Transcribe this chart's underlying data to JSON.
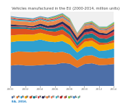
{
  "title": "Vehicles manufactured in the EU (2000-2014, million units)",
  "years": [
    2000,
    2001,
    2002,
    2003,
    2004,
    2005,
    2006,
    2007,
    2008,
    2009,
    2010,
    2011,
    2012,
    2013,
    2014
  ],
  "series": [
    {
      "label": "DE",
      "color": "#4d6fa8",
      "values": [
        5.5,
        5.7,
        5.5,
        5.5,
        5.6,
        5.8,
        5.8,
        6.2,
        6.0,
        4.9,
        5.9,
        6.1,
        5.6,
        5.7,
        5.9
      ]
    },
    {
      "label": "FR",
      "color": "#e87722",
      "values": [
        3.3,
        3.6,
        3.7,
        3.6,
        3.7,
        3.5,
        3.2,
        3.0,
        2.6,
        2.0,
        2.2,
        2.2,
        1.9,
        1.7,
        1.8
      ]
    },
    {
      "label": "ES",
      "color": "#2fa0d0",
      "values": [
        3.0,
        2.8,
        2.9,
        3.0,
        3.2,
        2.7,
        2.8,
        2.9,
        2.5,
        2.1,
        2.4,
        2.4,
        1.9,
        2.2,
        2.4
      ]
    },
    {
      "label": "GB",
      "color": "#f5a800",
      "values": [
        1.8,
        1.7,
        1.8,
        1.7,
        1.8,
        1.8,
        1.6,
        1.8,
        1.6,
        1.0,
        1.4,
        1.5,
        1.6,
        1.6,
        1.6
      ]
    },
    {
      "label": "IT",
      "color": "#e05020",
      "values": [
        1.8,
        1.6,
        1.5,
        1.3,
        1.1,
        1.0,
        1.2,
        1.3,
        1.0,
        0.8,
        0.8,
        0.8,
        0.7,
        0.4,
        0.7
      ]
    },
    {
      "label": "CZ",
      "color": "#1a7a8a",
      "values": [
        0.5,
        0.5,
        0.4,
        0.4,
        0.6,
        0.6,
        0.9,
        0.9,
        0.9,
        0.9,
        1.1,
        1.2,
        1.2,
        1.1,
        1.3
      ]
    },
    {
      "label": "SK",
      "color": "#d04040",
      "values": [
        0.2,
        0.2,
        0.2,
        0.3,
        0.2,
        0.2,
        0.3,
        0.6,
        0.5,
        0.4,
        0.6,
        0.6,
        0.9,
        0.9,
        1.0
      ]
    },
    {
      "label": "PL",
      "color": "#2d2d5a",
      "values": [
        0.5,
        0.3,
        0.3,
        0.3,
        0.6,
        0.6,
        0.7,
        0.7,
        0.9,
        0.9,
        0.9,
        0.8,
        0.6,
        0.5,
        0.6
      ]
    },
    {
      "label": "BE",
      "color": "#e8884a",
      "values": [
        1.1,
        1.0,
        1.0,
        0.9,
        0.8,
        0.9,
        0.9,
        0.7,
        0.7,
        0.5,
        0.6,
        0.6,
        0.5,
        0.5,
        0.5
      ]
    },
    {
      "label": "RO",
      "color": "#f07850",
      "values": [
        0.1,
        0.1,
        0.1,
        0.2,
        0.2,
        0.2,
        0.2,
        0.3,
        0.3,
        0.2,
        0.4,
        0.3,
        0.3,
        0.4,
        0.4
      ]
    },
    {
      "label": "SE",
      "color": "#3ab8c8",
      "values": [
        0.3,
        0.3,
        0.3,
        0.3,
        0.3,
        0.3,
        0.3,
        0.3,
        0.3,
        0.1,
        0.2,
        0.2,
        0.2,
        0.2,
        0.2
      ]
    },
    {
      "label": "PT",
      "color": "#c83030",
      "values": [
        0.2,
        0.2,
        0.2,
        0.2,
        0.2,
        0.2,
        0.2,
        0.2,
        0.2,
        0.1,
        0.1,
        0.2,
        0.1,
        0.2,
        0.2
      ]
    },
    {
      "label": "AT",
      "color": "#e87060",
      "values": [
        0.2,
        0.2,
        0.2,
        0.2,
        0.2,
        0.2,
        0.3,
        0.2,
        0.2,
        0.1,
        0.1,
        0.1,
        0.1,
        0.1,
        0.1
      ]
    },
    {
      "label": "HU",
      "color": "#88c040",
      "values": [
        0.1,
        0.1,
        0.1,
        0.1,
        0.1,
        0.2,
        0.3,
        0.3,
        0.3,
        0.2,
        0.2,
        0.3,
        0.2,
        0.3,
        0.4
      ]
    },
    {
      "label": "NL",
      "color": "#5090c8",
      "values": [
        0.2,
        0.2,
        0.2,
        0.2,
        0.2,
        0.2,
        0.2,
        0.2,
        0.1,
        0.1,
        0.1,
        0.1,
        0.1,
        0.1,
        0.1
      ]
    },
    {
      "label": "FI",
      "color": "#70c0a0",
      "values": [
        0.0,
        0.0,
        0.0,
        0.0,
        0.0,
        0.0,
        0.0,
        0.0,
        0.1,
        0.0,
        0.0,
        0.1,
        0.1,
        0.1,
        0.1
      ]
    }
  ],
  "xlim": [
    2000,
    2014
  ],
  "ylim": [
    0,
    20
  ],
  "bg_color": "#ffffff",
  "plot_bg": "#f0f0f0",
  "title_fontsize": 3.8,
  "tick_fontsize": 3.0,
  "legend_fontsize": 2.2,
  "source_text": "EA, 2016.",
  "source_fontsize": 3.0,
  "source_color": "#0070c0"
}
